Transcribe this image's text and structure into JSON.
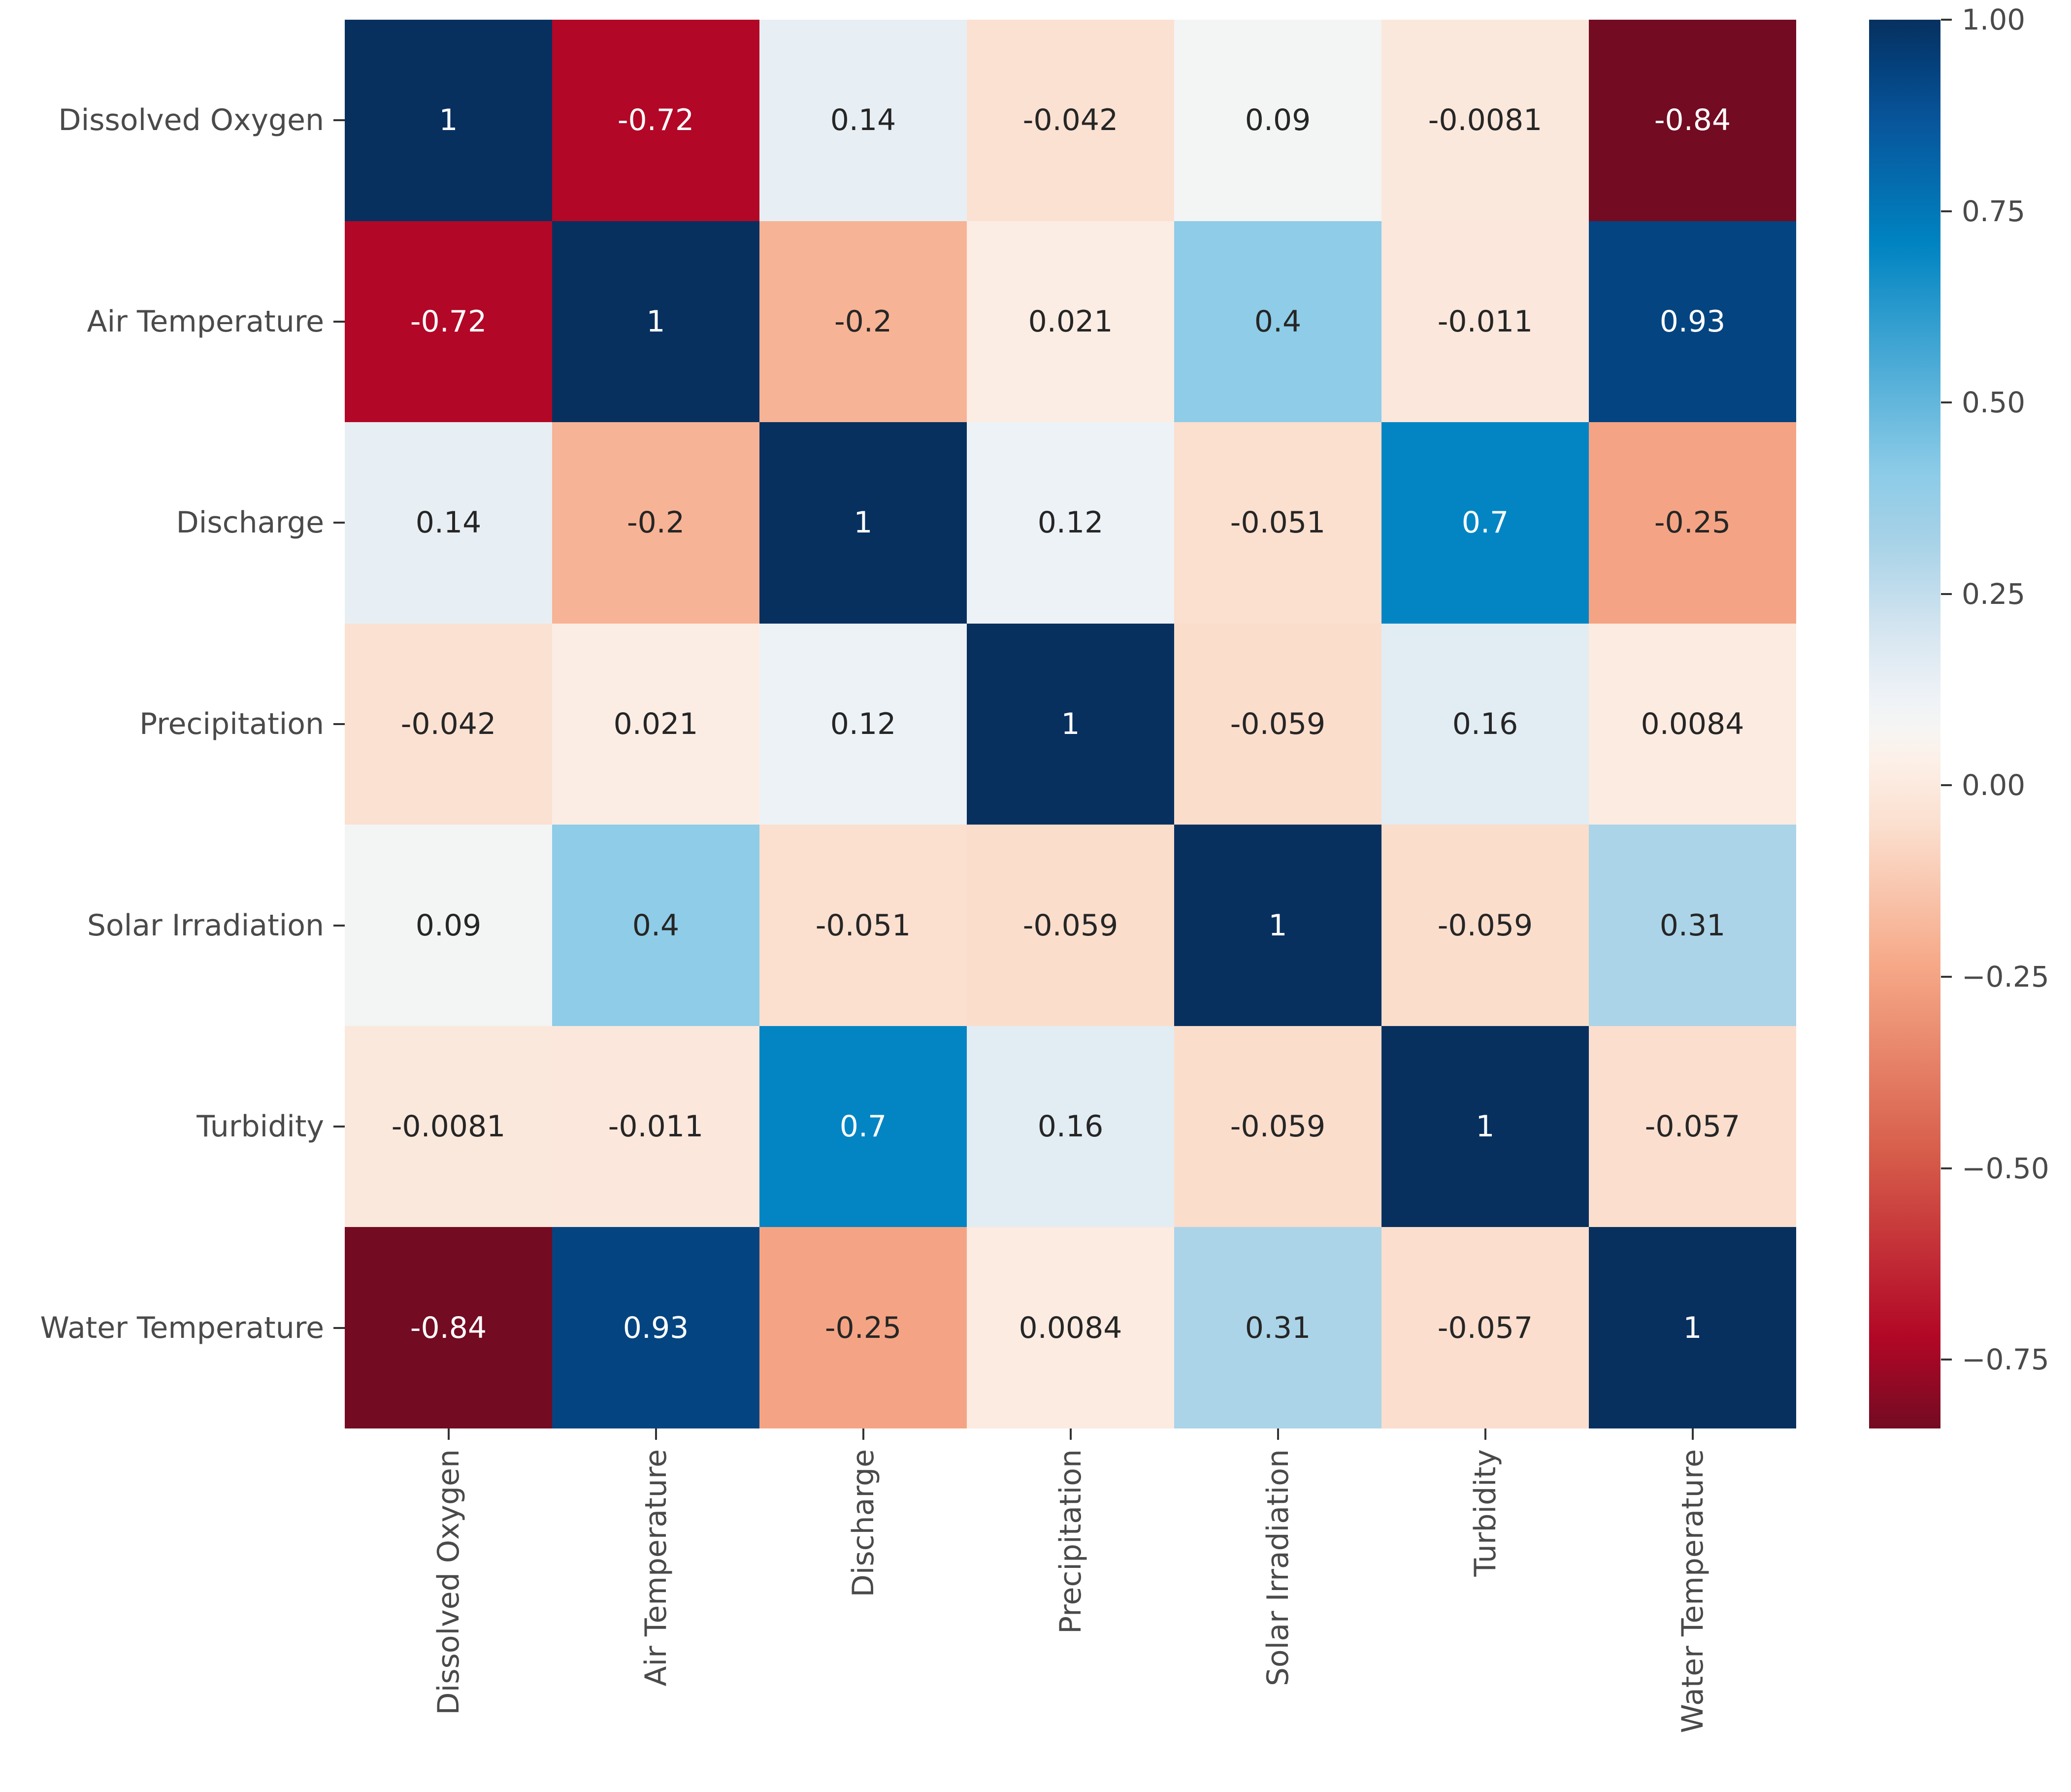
{
  "chart_data": {
    "type": "heatmap",
    "title": "",
    "categories": [
      "Dissolved Oxygen",
      "Air Temperature",
      "Discharge",
      "Precipitation",
      "Solar Irradiation",
      "Turbidity",
      "Water Temperature"
    ],
    "matrix": [
      [
        1,
        -0.72,
        0.14,
        -0.042,
        0.09,
        -0.0081,
        -0.84
      ],
      [
        -0.72,
        1,
        -0.2,
        0.021,
        0.4,
        -0.011,
        0.93
      ],
      [
        0.14,
        -0.2,
        1,
        0.12,
        -0.051,
        0.7,
        -0.25
      ],
      [
        -0.042,
        0.021,
        0.12,
        1,
        -0.059,
        0.16,
        0.0084
      ],
      [
        0.09,
        0.4,
        -0.051,
        -0.059,
        1,
        -0.059,
        0.31
      ],
      [
        -0.0081,
        -0.011,
        0.7,
        0.16,
        -0.059,
        1,
        -0.057
      ],
      [
        -0.84,
        0.93,
        -0.25,
        0.0084,
        0.31,
        -0.057,
        1
      ]
    ],
    "value_range": {
      "vmin": -0.84,
      "vmax": 1.0
    },
    "colorbar_ticks": [
      {
        "label": "1.00",
        "value": 1.0
      },
      {
        "label": "0.75",
        "value": 0.75
      },
      {
        "label": "0.50",
        "value": 0.5
      },
      {
        "label": "0.25",
        "value": 0.25
      },
      {
        "label": "0.00",
        "value": 0.0
      },
      {
        "label": "−0.25",
        "value": -0.25
      },
      {
        "label": "−0.50",
        "value": -0.5
      },
      {
        "label": "−0.75",
        "value": -0.75
      }
    ],
    "colormap_anchors": [
      {
        "pos": 0.0,
        "color": "#730b22"
      },
      {
        "pos": 0.065,
        "color": "#b20726"
      },
      {
        "pos": 0.2,
        "color": "#d8604c"
      },
      {
        "pos": 0.33,
        "color": "#f6a988"
      },
      {
        "pos": 0.43,
        "color": "#fbe0d0"
      },
      {
        "pos": 0.475,
        "color": "#fcf0e8"
      },
      {
        "pos": 0.495,
        "color": "#f7f5f3"
      },
      {
        "pos": 0.52,
        "color": "#eef2f6"
      },
      {
        "pos": 0.56,
        "color": "#d9e7f1"
      },
      {
        "pos": 0.63,
        "color": "#a7d2e7"
      },
      {
        "pos": 0.68,
        "color": "#8bcbe7"
      },
      {
        "pos": 0.78,
        "color": "#36a0d0"
      },
      {
        "pos": 0.84,
        "color": "#0084c2"
      },
      {
        "pos": 0.93,
        "color": "#08549a"
      },
      {
        "pos": 0.965,
        "color": "#04427e"
      },
      {
        "pos": 1.0,
        "color": "#07305f"
      }
    ],
    "annotation_text_dark": "#262626",
    "annotation_text_light": "#ffffff",
    "axis_label_color": "#4a4a4a",
    "tick_mark_color": "#333333",
    "legend_position": "right",
    "grid": false
  }
}
